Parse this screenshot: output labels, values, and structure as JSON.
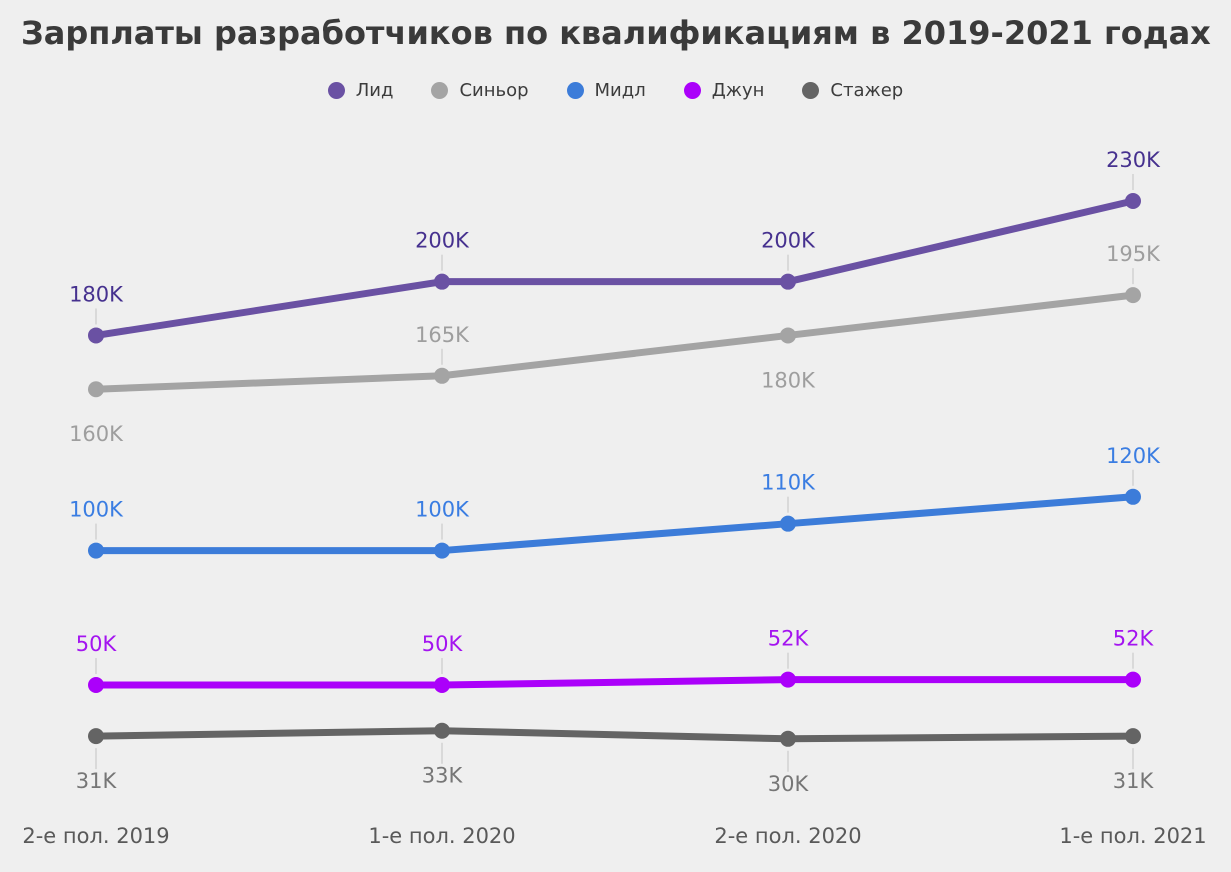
{
  "colors": {
    "background": "#efefef",
    "title_text": "#3a3a3a",
    "legend_text": "#3c3c3c",
    "axis_label": "#595959",
    "leader_line": "#d9d9d9"
  },
  "chart_data": {
    "type": "line",
    "title": "Зарплаты разработчиков по квалификациям в 2019-2021 годах",
    "x_categories": [
      "2-е пол. 2019",
      "1-е пол. 2020",
      "2-е пол. 2020",
      "1-е пол. 2021"
    ],
    "unit": "K",
    "ylim": [
      25,
      245
    ],
    "grid": false,
    "y_axis_visible": false,
    "legend_position": "top",
    "series": [
      {
        "id": "lead",
        "name": "Лид",
        "color": "#6a51a3",
        "label_color": "#46318f",
        "values": [
          180,
          200,
          200,
          230
        ],
        "labels": [
          "180K",
          "200K",
          "200K",
          "230K"
        ],
        "label_positions": [
          "above",
          "above",
          "above",
          "above"
        ],
        "leader_lines": [
          true,
          true,
          true,
          true
        ]
      },
      {
        "id": "senior",
        "name": "Синьор",
        "color": "#a4a4a4",
        "label_color": "#9e9e9e",
        "values": [
          160,
          165,
          180,
          195
        ],
        "labels": [
          "160K",
          "165K",
          "180K",
          "195K"
        ],
        "label_positions": [
          "below",
          "above",
          "below",
          "above"
        ],
        "leader_lines": [
          false,
          true,
          false,
          true
        ]
      },
      {
        "id": "middle",
        "name": "Мидл",
        "color": "#3c7cd9",
        "label_color": "#3a7de2",
        "values": [
          100,
          100,
          110,
          120
        ],
        "labels": [
          "100K",
          "100K",
          "110K",
          "120K"
        ],
        "label_positions": [
          "above",
          "above",
          "above",
          "above"
        ],
        "leader_lines": [
          true,
          true,
          true,
          true
        ]
      },
      {
        "id": "junior",
        "name": "Джун",
        "color": "#ab00fa",
        "label_color": "#a414f0",
        "values": [
          50,
          50,
          52,
          52
        ],
        "labels": [
          "50K",
          "50K",
          "52K",
          "52K"
        ],
        "label_positions": [
          "above",
          "above",
          "above",
          "above"
        ],
        "leader_lines": [
          true,
          true,
          true,
          true
        ]
      },
      {
        "id": "intern",
        "name": "Стажер",
        "color": "#646464",
        "label_color": "#767676",
        "values": [
          31,
          33,
          30,
          31
        ],
        "labels": [
          "31K",
          "33K",
          "30K",
          "31K"
        ],
        "label_positions": [
          "below",
          "below",
          "below",
          "below"
        ],
        "leader_lines": [
          true,
          true,
          true,
          true
        ]
      }
    ]
  }
}
